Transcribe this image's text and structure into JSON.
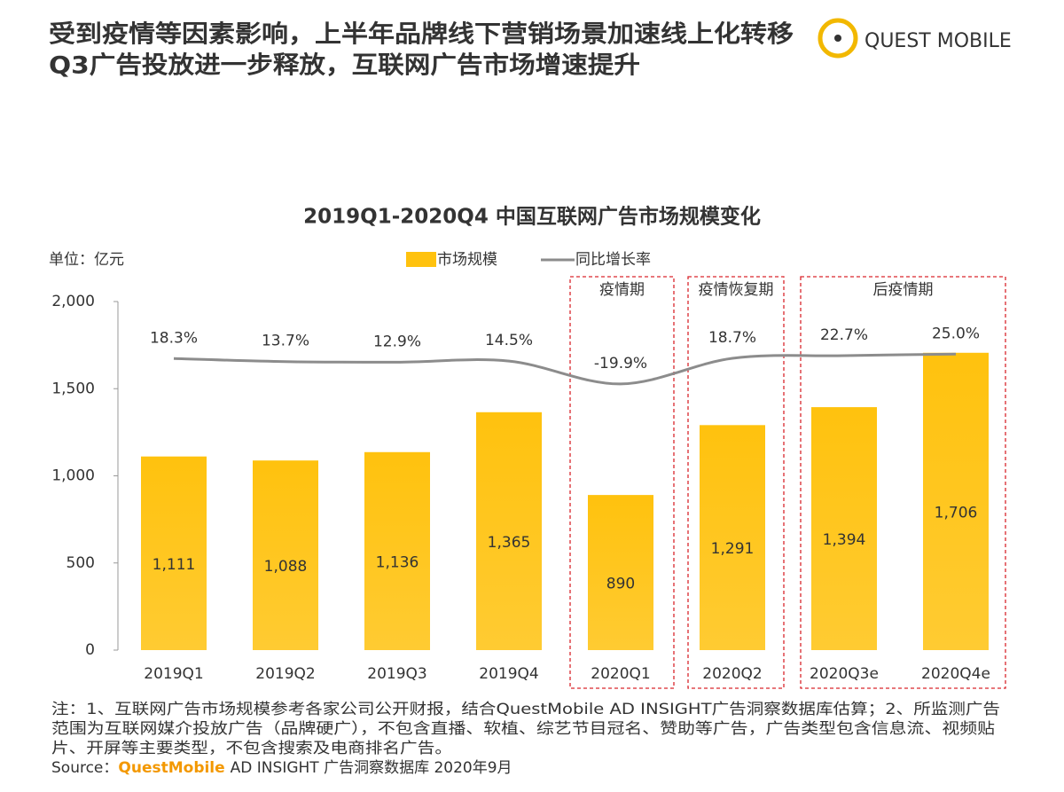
{
  "header": {
    "title_lines": [
      "受到疫情等因素影响，上半年品牌线下营销场景加速线上化转移",
      "Q3广告投放进一步释放，互联网广告市场增速提升"
    ],
    "logo": "QUEST MOBILE"
  },
  "chart_data": {
    "type": "bar",
    "title": "2019Q1-2020Q4 中国互联网广告市场规模变化",
    "unit_label": "单位：亿元",
    "categories": [
      "2019Q1",
      "2019Q2",
      "2019Q3",
      "2019Q4",
      "2020Q1",
      "2020Q2",
      "2020Q3e",
      "2020Q4e"
    ],
    "series": [
      {
        "name": "市场规模",
        "type": "bar",
        "color": "#FFC20E",
        "values": [
          1111,
          1088,
          1136,
          1365,
          890,
          1291,
          1394,
          1706
        ],
        "value_labels": [
          "1,111",
          "1,088",
          "1,136",
          "1,365",
          "890",
          "1,291",
          "1,394",
          "1,706"
        ]
      },
      {
        "name": "同比增长率",
        "type": "line",
        "axis": "y2",
        "color": "#8c8c8c",
        "values": [
          18.3,
          13.7,
          12.9,
          14.5,
          -19.9,
          18.7,
          22.7,
          25.0
        ],
        "value_labels": [
          "18.3%",
          "13.7%",
          "12.9%",
          "14.5%",
          "-19.9%",
          "18.7%",
          "22.7%",
          "25.0%"
        ]
      }
    ],
    "ylim": [
      0,
      2000
    ],
    "yticks": [
      0,
      500,
      {
        "value": 1000,
        "label": "1,000"
      },
      {
        "value": 1500,
        "label": "1,500"
      },
      {
        "value": 2000,
        "label": "2,000"
      }
    ],
    "y2lim": [
      -420,
      104
    ],
    "annotations": [
      "疫情期",
      "疫情恢复期",
      "后疫情期"
    ],
    "grid": false
  },
  "footer": {
    "notes": [
      "注：1、互联网广告市场规模参考各家公司公开财报，结合QuestMobile AD INSIGHT广告洞察数据库估算；2、所监测广告",
      "范围为互联网媒介投放广告（品牌硬广），不包含直播、软植、综艺节目冠名、赞助等广告，广告类型包含信息流、视频贴",
      "片、开屏等主要类型，不包含搜索及电商排名广告。"
    ],
    "source": {
      "prefix": "Source：",
      "brand": "QuestMobile",
      "rest": "AD INSIGHT 广告洞察数据库 2020年9月"
    }
  }
}
